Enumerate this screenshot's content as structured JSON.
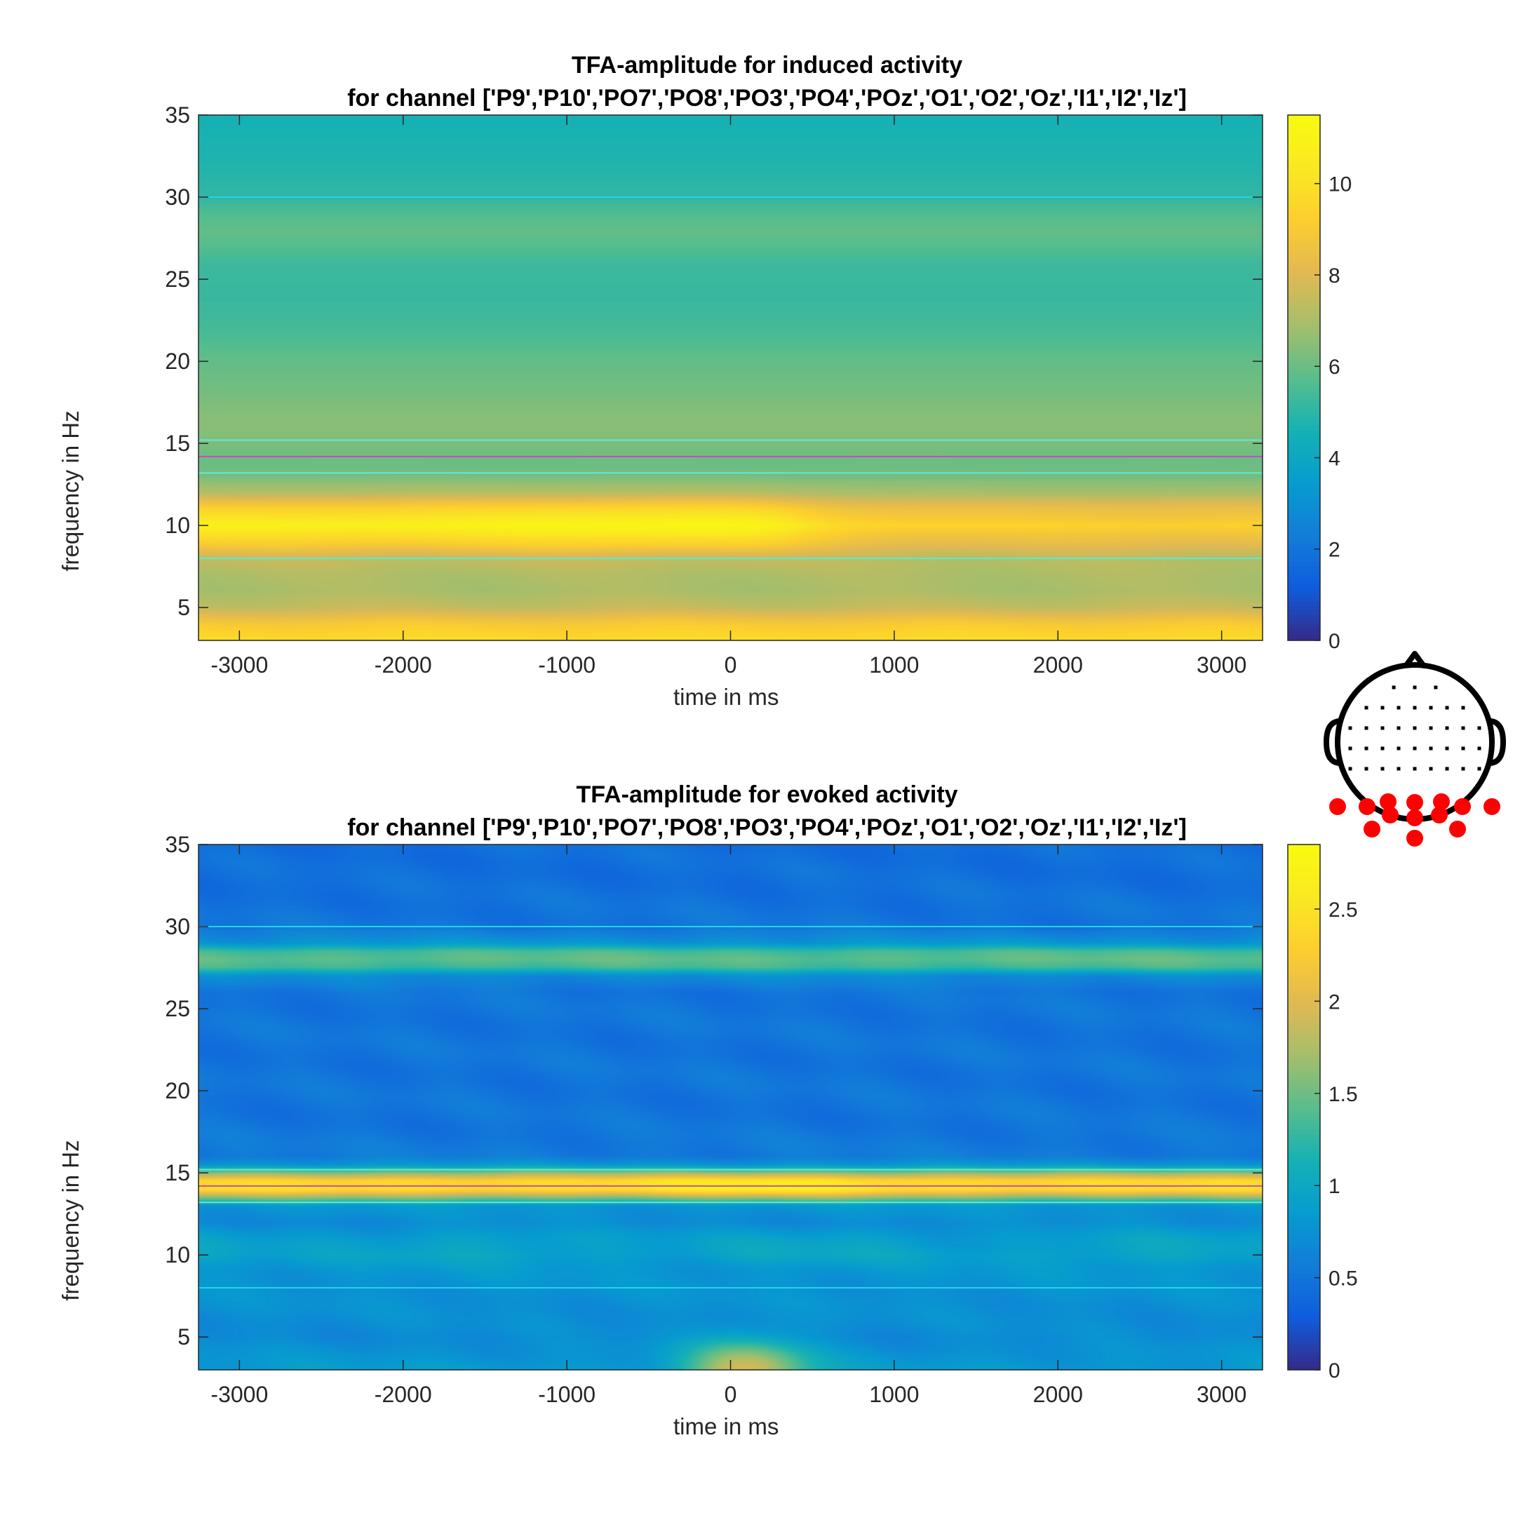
{
  "chart_data": [
    {
      "type": "heatmap",
      "title": "TFA-amplitude for induced activity",
      "subtitle": "for channel ['P9','P10','PO7','PO8','PO3','PO4','POz','O1','O2','Oz','I1','I2','Iz']",
      "xlabel": "time in ms",
      "ylabel": "frequency in Hz",
      "xlim": [
        -3250,
        3250
      ],
      "ylim": [
        3,
        35
      ],
      "xticks": [
        -3000,
        -2000,
        -1000,
        0,
        1000,
        2000,
        3000
      ],
      "yticks": [
        5,
        10,
        15,
        20,
        25,
        30,
        35
      ],
      "colormap": "parula",
      "clim": [
        0,
        11.5
      ],
      "colorbar_ticks": [
        0,
        2,
        4,
        6,
        8,
        10
      ],
      "frequency_profile": {
        "frequencies": [
          3,
          4,
          5,
          6,
          7,
          8,
          9,
          10,
          11,
          12,
          13,
          14,
          15,
          16,
          17,
          18,
          20,
          22,
          24,
          26,
          27,
          28,
          29,
          30,
          32,
          35
        ],
        "amplitudes": [
          9.8,
          9.0,
          7.5,
          7.0,
          7.1,
          7.5,
          9.3,
          10.8,
          9.4,
          7.2,
          6.2,
          6.0,
          6.3,
          6.5,
          6.4,
          6.2,
          5.9,
          5.4,
          5.2,
          5.3,
          5.7,
          5.9,
          5.6,
          5.1,
          4.8,
          4.6
        ]
      },
      "reference_lines": [
        {
          "frequency": 30,
          "color": "#22d3ee"
        },
        {
          "frequency": 15.2,
          "color": "#5eead4"
        },
        {
          "frequency": 14.2,
          "color": "#c94bb4"
        },
        {
          "frequency": 13.2,
          "color": "#5eead4"
        },
        {
          "frequency": 8,
          "color": "#5eead4"
        }
      ],
      "notes": "alpha band near 10 Hz strongest before 0 ms (peak ~11 around -200 ms), weaker ~9.3 after 500 ms"
    },
    {
      "type": "heatmap",
      "title": "TFA-amplitude for evoked activity",
      "subtitle": "for channel ['P9','P10','PO7','PO8','PO3','PO4','POz','O1','O2','Oz','I1','I2','Iz']",
      "xlabel": "time in ms",
      "ylabel": "frequency in Hz",
      "xlim": [
        -3250,
        3250
      ],
      "ylim": [
        3,
        35
      ],
      "xticks": [
        -3000,
        -2000,
        -1000,
        0,
        1000,
        2000,
        3000
      ],
      "yticks": [
        5,
        10,
        15,
        20,
        25,
        30,
        35
      ],
      "colormap": "parula",
      "clim": [
        0,
        2.85
      ],
      "colorbar_ticks": [
        0,
        0.5,
        1,
        1.5,
        2,
        2.5
      ],
      "frequency_profile": {
        "frequencies": [
          3,
          5,
          7,
          9,
          10,
          11,
          12,
          13,
          13.5,
          14,
          14.5,
          15,
          15.5,
          16,
          18,
          20,
          24,
          26,
          27,
          27.5,
          28,
          28.5,
          29,
          30,
          33,
          35
        ],
        "amplitudes": [
          0.85,
          0.7,
          0.75,
          0.8,
          0.9,
          0.85,
          0.7,
          0.8,
          1.6,
          2.45,
          2.4,
          1.6,
          0.8,
          0.55,
          0.5,
          0.5,
          0.5,
          0.5,
          0.7,
          1.3,
          1.45,
          1.35,
          0.8,
          0.5,
          0.45,
          0.45
        ]
      },
      "reference_lines": [
        {
          "frequency": 30,
          "color": "#22d3ee"
        },
        {
          "frequency": 15.2,
          "color": "#5eead4"
        },
        {
          "frequency": 14.2,
          "color": "#c94bb4"
        },
        {
          "frequency": 13.2,
          "color": "#5eead4"
        },
        {
          "frequency": 8,
          "color": "#22d3ee"
        }
      ],
      "notes": "evoked blob ~1.9 at 3 Hz around 100 ms; beta band near 14 Hz peaks ~2.5 around 200 ms"
    }
  ],
  "head_map": {
    "electrode_grid_color": "#000000",
    "selected_color": "#ff0000",
    "selected_channels": [
      "P9",
      "P10",
      "PO7",
      "PO8",
      "PO3",
      "PO4",
      "POz",
      "O1",
      "O2",
      "Oz",
      "I1",
      "I2",
      "Iz"
    ]
  }
}
